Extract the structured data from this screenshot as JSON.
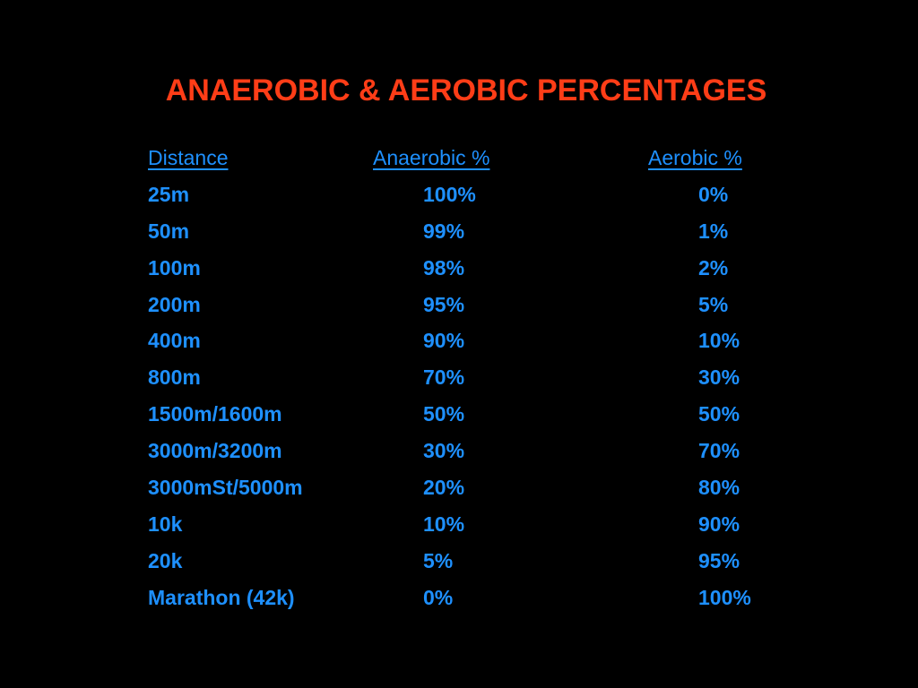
{
  "slide": {
    "title": "ANAEROBIC & AEROBIC PERCENTAGES",
    "title_color": "#ff3d17",
    "text_color": "#1e90ff",
    "background_color": "#000000"
  },
  "table": {
    "headers": {
      "distance": "Distance",
      "anaerobic": "Anaerobic %",
      "aerobic": "Aerobic %"
    },
    "rows": [
      {
        "distance": "25m",
        "anaerobic": "100%",
        "aerobic": "0%"
      },
      {
        "distance": "50m",
        "anaerobic": "99%",
        "aerobic": "1%"
      },
      {
        "distance": "100m",
        "anaerobic": "98%",
        "aerobic": "2%"
      },
      {
        "distance": "200m",
        "anaerobic": "95%",
        "aerobic": "5%"
      },
      {
        "distance": "400m",
        "anaerobic": "90%",
        "aerobic": "10%"
      },
      {
        "distance": "800m",
        "anaerobic": "70%",
        "aerobic": "30%"
      },
      {
        "distance": "1500m/1600m",
        "anaerobic": "50%",
        "aerobic": "50%"
      },
      {
        "distance": "3000m/3200m",
        "anaerobic": "30%",
        "aerobic": "70%"
      },
      {
        "distance": "3000mSt/5000m",
        "anaerobic": "20%",
        "aerobic": "80%"
      },
      {
        "distance": "10k",
        "anaerobic": "10%",
        "aerobic": "90%"
      },
      {
        "distance": "20k",
        "anaerobic": "5%",
        "aerobic": "95%"
      },
      {
        "distance": "Marathon (42k)",
        "anaerobic": "0%",
        "aerobic": "100%"
      }
    ]
  }
}
